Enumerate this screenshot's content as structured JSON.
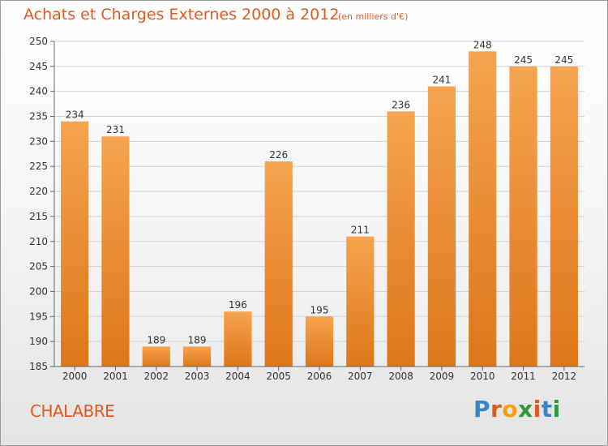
{
  "header": {
    "title": "Achats et Charges Externes 2000 à 2012",
    "subtitle": "(en milliers d'€)"
  },
  "footer": {
    "commune": "CHALABRE",
    "logo": "Proxiti"
  },
  "colors": {
    "accent": "#e05a1f",
    "bar_top": "#f6a450",
    "bar_bottom": "#dd761a"
  },
  "chart_data": {
    "type": "bar",
    "categories": [
      "2000",
      "2001",
      "2002",
      "2003",
      "2004",
      "2005",
      "2006",
      "2007",
      "2008",
      "2009",
      "2010",
      "2011",
      "2012"
    ],
    "values": [
      234,
      231,
      189,
      189,
      196,
      226,
      195,
      211,
      236,
      241,
      248,
      245,
      245
    ],
    "title": "Achats et Charges Externes 2000 à 2012",
    "subtitle": "(en milliers d'€)",
    "xlabel": "",
    "ylabel": "",
    "ylim": [
      185,
      250
    ],
    "yticks": [
      185,
      190,
      195,
      200,
      205,
      210,
      215,
      220,
      225,
      230,
      235,
      240,
      245,
      250
    ],
    "grid": true,
    "data_labels": true
  }
}
